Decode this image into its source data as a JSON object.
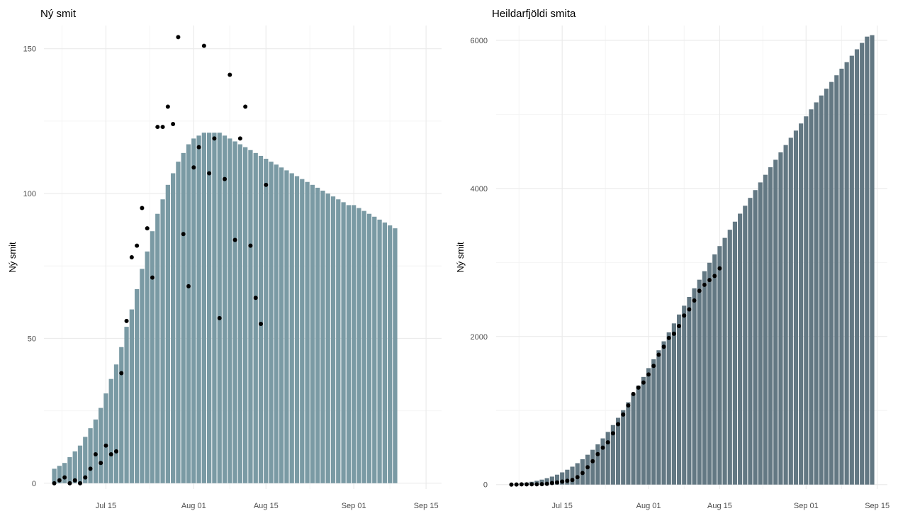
{
  "colors": {
    "left_bar": "#7a9aa4",
    "right_bar": "#637883",
    "point": "#000000",
    "grid_major": "#ebebeb",
    "grid_minor": "#f4f4f4"
  },
  "chart_data": [
    {
      "type": "bar",
      "title": "Ný smit",
      "xlabel": "",
      "ylabel": "Ný smit",
      "x_start": "2020-07-05",
      "xlim": [
        "2020-07-03",
        "2020-09-18"
      ],
      "ylim": [
        -2,
        158
      ],
      "x_ticks": [
        {
          "date": "2020-07-15",
          "label": "Jul 15"
        },
        {
          "date": "2020-08-01",
          "label": "Aug 01"
        },
        {
          "date": "2020-08-15",
          "label": "Aug 15"
        },
        {
          "date": "2020-09-01",
          "label": "Sep 01"
        },
        {
          "date": "2020-09-15",
          "label": "Sep 15"
        }
      ],
      "y_ticks": [
        0,
        50,
        100,
        150
      ],
      "grid": true,
      "bars": [
        5,
        6,
        7,
        9,
        11,
        13,
        16,
        19,
        22,
        26,
        31,
        36,
        41,
        47,
        54,
        60,
        67,
        74,
        80,
        87,
        93,
        98,
        103,
        107,
        111,
        114,
        117,
        119,
        120,
        121,
        121,
        121,
        121,
        120,
        119,
        118,
        117,
        116,
        115,
        114,
        113,
        112,
        111,
        110,
        109,
        108,
        107,
        106,
        105,
        104,
        103,
        102,
        101,
        100,
        99,
        98,
        97,
        96,
        96,
        95,
        94,
        93,
        92,
        91,
        90,
        89,
        88
      ],
      "points": {
        "x_start": "2020-07-05",
        "values": [
          0,
          1,
          2,
          0,
          1,
          0,
          2,
          5,
          10,
          7,
          13,
          10,
          11,
          38,
          56,
          78,
          82,
          95,
          88,
          71,
          123,
          123,
          130,
          124,
          154,
          86,
          68,
          109,
          116,
          151,
          107,
          119,
          57,
          105,
          141,
          84,
          119,
          130,
          82,
          64,
          55,
          103
        ]
      }
    },
    {
      "type": "bar",
      "title": "Heildarfjöldi smita",
      "xlabel": "",
      "ylabel": "Ný smit",
      "x_start": "2020-07-05",
      "xlim": [
        "2020-07-02",
        "2020-09-17"
      ],
      "ylim": [
        -60,
        6200
      ],
      "x_ticks": [
        {
          "date": "2020-07-15",
          "label": "Jul 15"
        },
        {
          "date": "2020-08-01",
          "label": "Aug 01"
        },
        {
          "date": "2020-08-15",
          "label": "Aug 15"
        },
        {
          "date": "2020-09-01",
          "label": "Sep 01"
        },
        {
          "date": "2020-09-15",
          "label": "Sep 15"
        }
      ],
      "y_ticks": [
        0,
        2000,
        4000,
        6000
      ],
      "grid": true,
      "bars": [
        5,
        11,
        18,
        27,
        38,
        51,
        67,
        86,
        108,
        134,
        165,
        201,
        242,
        289,
        343,
        403,
        470,
        544,
        624,
        711,
        804,
        902,
        1005,
        1112,
        1223,
        1337,
        1454,
        1573,
        1693,
        1814,
        1935,
        2056,
        2177,
        2297,
        2416,
        2534,
        2651,
        2767,
        2882,
        2996,
        3109,
        3221,
        3332,
        3442,
        3551,
        3659,
        3766,
        3872,
        3977,
        4081,
        4184,
        4286,
        4387,
        4487,
        4586,
        4684,
        4781,
        4877,
        4973,
        5068,
        5162,
        5255,
        5347,
        5438,
        5528,
        5617,
        5705,
        5792,
        5879,
        5965,
        6050,
        6070
      ],
      "points": {
        "x_start": "2020-07-05",
        "values": [
          0,
          1,
          3,
          3,
          4,
          4,
          6,
          11,
          21,
          28,
          41,
          51,
          62,
          100,
          156,
          234,
          316,
          411,
          499,
          570,
          693,
          816,
          946,
          1070,
          1224,
          1310,
          1378,
          1487,
          1603,
          1754,
          1861,
          1980,
          2037,
          2142,
          2283,
          2367,
          2486,
          2616,
          2698,
          2762,
          2817,
          2920
        ]
      }
    }
  ]
}
